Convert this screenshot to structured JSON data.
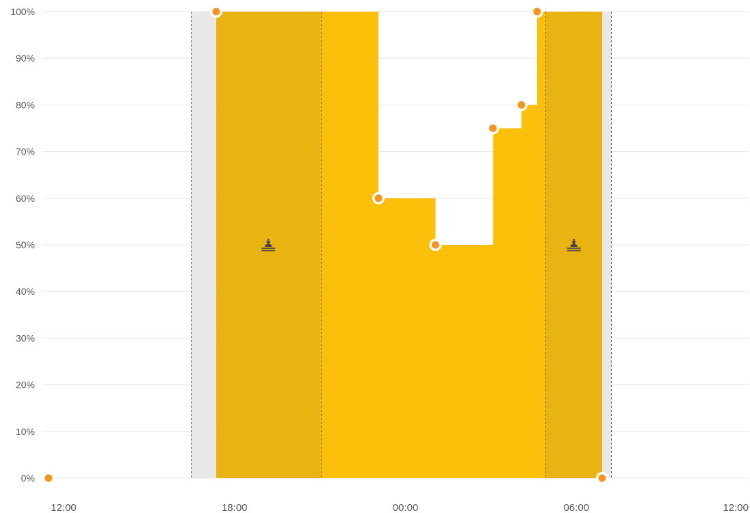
{
  "chart_data": {
    "type": "area",
    "title": "",
    "xlabel": "",
    "ylabel": "",
    "x_ticks": [
      "12:00",
      "18:00",
      "00:00",
      "06:00",
      "12:00"
    ],
    "x_tick_hours": [
      12,
      18,
      24,
      30,
      36
    ],
    "y_ticks": [
      "0%",
      "10%",
      "20%",
      "30%",
      "40%",
      "50%",
      "60%",
      "70%",
      "80%",
      "90%",
      "100%"
    ],
    "ylim": [
      0,
      100
    ],
    "xlim_hours": [
      12,
      36
    ],
    "grid": "horizontal",
    "colors": {
      "area": "#FDC00A",
      "band": "#E9B412",
      "night_shade": "#E8E8E8",
      "grid": "#E6E6E6",
      "point": "#F7941D",
      "point_ring": "#FFFFFF",
      "dashed_line": "#666666",
      "icon": "#444444"
    },
    "series": [
      {
        "type": "step-area",
        "points": [
          {
            "time": "12:00",
            "value": 0
          },
          {
            "time": "17:53",
            "value": 100
          },
          {
            "time": "23:35",
            "value": 60
          },
          {
            "time": "01:35",
            "value": 50
          },
          {
            "time": "03:36",
            "value": 75
          },
          {
            "time": "04:36",
            "value": 80
          },
          {
            "time": "05:09",
            "value": 100
          },
          {
            "time": "07:26",
            "value": 0
          }
        ]
      }
    ],
    "bands": [
      {
        "start": "17:53",
        "end": "21:33",
        "icon": "sunset-icon"
      },
      {
        "start": "05:27",
        "end": "07:26",
        "icon": "sunrise-icon"
      }
    ],
    "shaded_regions": [
      {
        "start": "17:00",
        "end": "17:53"
      },
      {
        "start": "07:26",
        "end": "07:45"
      }
    ],
    "dashed_lines": [
      "17:00",
      "21:33",
      "05:27",
      "07:45"
    ]
  }
}
